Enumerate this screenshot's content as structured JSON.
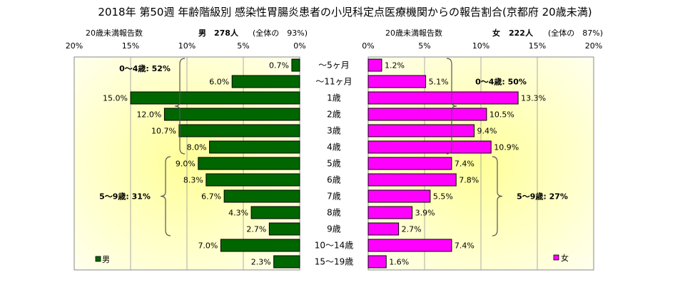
{
  "title": "2018年 第50週 年齢階級別 感染性胃腸炎患者の小児科定点医療機関からの報告割合(京都府 20歳未満)",
  "male_header": {
    "caption": "20歳未満報告数",
    "sex": "男",
    "count": "278人",
    "ratio": "(全体の　93%)"
  },
  "female_header": {
    "caption": "20歳未満報告数",
    "sex": "女",
    "count": "222人",
    "ratio": "(全体の　87%)"
  },
  "chart_data": [
    {
      "type": "bar",
      "orientation": "horizontal",
      "direction": "right-to-left",
      "name": "男",
      "categories": [
        "～5ヶ月",
        "～11ヶ月",
        "1歳",
        "2歳",
        "3歳",
        "4歳",
        "5歳",
        "6歳",
        "7歳",
        "8歳",
        "9歳",
        "10～14歳",
        "15～19歳"
      ],
      "values": [
        0.7,
        6.0,
        15.0,
        12.0,
        10.7,
        8.0,
        9.0,
        8.3,
        6.7,
        4.3,
        2.7,
        7.0,
        2.3
      ],
      "value_labels": [
        "0.7%",
        "6.0%",
        "15.0%",
        "12.0%",
        "10.7%",
        "8.0%",
        "9.0%",
        "8.3%",
        "6.7%",
        "4.3%",
        "2.7%",
        "7.0%",
        "2.3%"
      ],
      "xlim": [
        0,
        20
      ],
      "xticks": [
        "20%",
        "15%",
        "10%",
        "5%",
        "0%"
      ],
      "color": "#006600",
      "legend": "男",
      "legend_position": "bottom-left",
      "groups": [
        {
          "label": "0～4歳: 52%",
          "from": 0,
          "to": 5
        },
        {
          "label": "5～9歳: 31%",
          "from": 6,
          "to": 10
        }
      ]
    },
    {
      "type": "bar",
      "orientation": "horizontal",
      "direction": "left-to-right",
      "name": "女",
      "categories": [
        "～5ヶ月",
        "～11ヶ月",
        "1歳",
        "2歳",
        "3歳",
        "4歳",
        "5歳",
        "6歳",
        "7歳",
        "8歳",
        "9歳",
        "10～14歳",
        "15～19歳"
      ],
      "values": [
        1.2,
        5.1,
        13.3,
        10.5,
        9.4,
        10.9,
        7.4,
        7.8,
        5.5,
        3.9,
        2.7,
        7.4,
        1.6
      ],
      "value_labels": [
        "1.2%",
        "5.1%",
        "13.3%",
        "10.5%",
        "9.4%",
        "10.9%",
        "7.4%",
        "7.8%",
        "5.5%",
        "3.9%",
        "2.7%",
        "7.4%",
        "1.6%"
      ],
      "xlim": [
        0,
        20
      ],
      "xticks": [
        "0%",
        "5%",
        "10%",
        "15%",
        "20%"
      ],
      "color": "#ff00ff",
      "legend": "女",
      "legend_position": "bottom-right",
      "groups": [
        {
          "label": "0～4歳: 50%",
          "from": 0,
          "to": 5
        },
        {
          "label": "5～9歳: 27%",
          "from": 6,
          "to": 10
        }
      ]
    }
  ]
}
